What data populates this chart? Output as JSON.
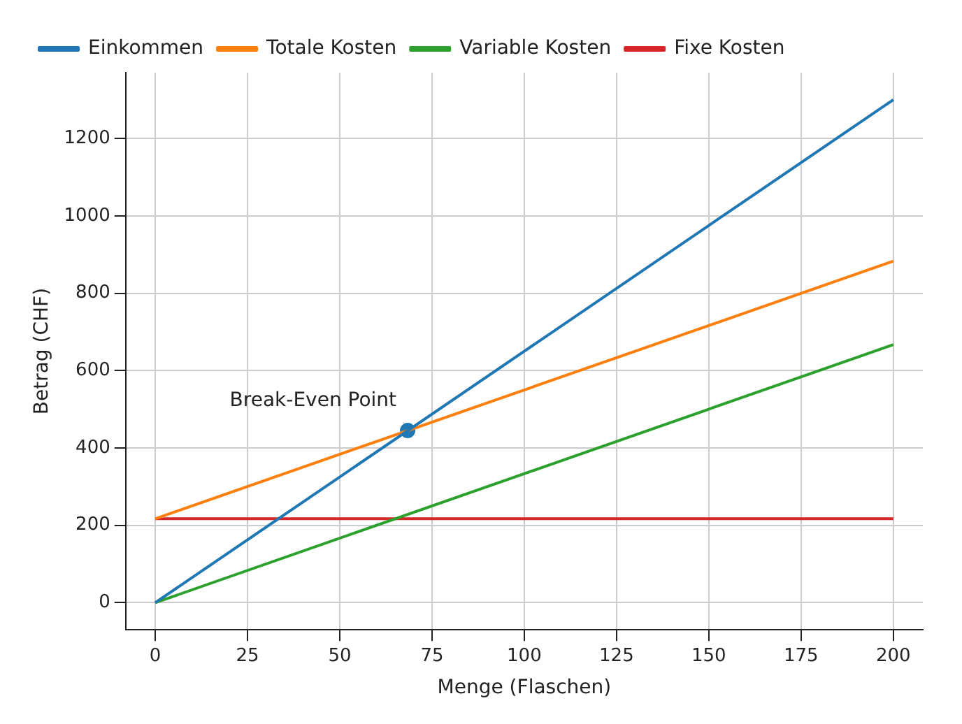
{
  "chart_data": {
    "type": "line",
    "xlabel": "Menge (Flaschen)",
    "ylabel": "Betrag (CHF)",
    "xlim": [
      -8,
      208
    ],
    "xticks": [
      0,
      25,
      50,
      75,
      100,
      125,
      150,
      175,
      200
    ],
    "ylim": [
      -70,
      1370
    ],
    "yticks": [
      0,
      200,
      400,
      600,
      800,
      1000,
      1200
    ],
    "grid": true,
    "legend": "top left",
    "marker": "none",
    "line_style": "solid",
    "series": [
      {
        "name": "Einkommen",
        "color": "#1f77b4",
        "x": [
          0,
          200
        ],
        "values": [
          0,
          1300
        ]
      },
      {
        "name": "Totale Kosten",
        "color": "#ff7f0e",
        "x": [
          0,
          200
        ],
        "values": [
          217,
          883
        ]
      },
      {
        "name": "Variable Kosten",
        "color": "#2ca02c",
        "x": [
          0,
          200
        ],
        "values": [
          0,
          667
        ]
      },
      {
        "name": "Fixe Kosten",
        "color": "#d62728",
        "x": [
          0,
          200
        ],
        "values": [
          217,
          217
        ]
      },
      {
        "type": "scatter",
        "marker": "circle",
        "color": "#1f77b4",
        "x": [
          68.4
        ],
        "values": [
          445
        ]
      }
    ],
    "annotations": [
      {
        "text": "Break-Even Point",
        "x": 68.4,
        "y": 445
      }
    ]
  }
}
